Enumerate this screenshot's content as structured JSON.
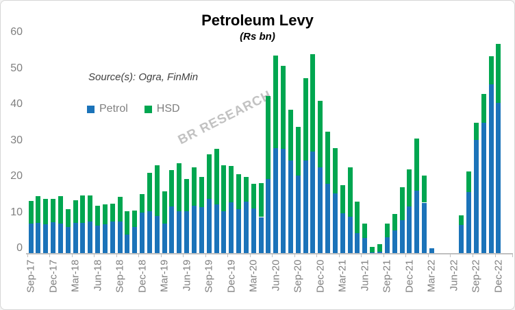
{
  "chart_data": {
    "type": "bar",
    "stacked": true,
    "title": "Petroleum Levy",
    "subtitle": "(Rs bn)",
    "source_note": "Source(s): Ogra, FinMin",
    "watermark": "BR RESEARCH",
    "legend_position": "top-left",
    "grid": false,
    "ylim": [
      0,
      60
    ],
    "yticks": [
      0,
      10,
      20,
      30,
      40,
      50,
      60
    ],
    "x_axis_tick_labels": [
      "Sep-17",
      "Dec-17",
      "Mar-18",
      "Jun-18",
      "Sep-18",
      "Dec-18",
      "Mar-19",
      "Jun-19",
      "Sep-19",
      "Dec-19",
      "Mar-20",
      "Jun-20",
      "Sep-20",
      "Dec-20",
      "Mar-21",
      "Jun-21",
      "Sep-21",
      "Dec-21",
      "Mar-22",
      "Jun-22",
      "Sep-22",
      "Dec-22"
    ],
    "categories": [
      "Sep-17",
      "Oct-17",
      "Nov-17",
      "Dec-17",
      "Jan-18",
      "Feb-18",
      "Mar-18",
      "Apr-18",
      "May-18",
      "Jun-18",
      "Jul-18",
      "Aug-18",
      "Sep-18",
      "Oct-18",
      "Nov-18",
      "Dec-18",
      "Jan-19",
      "Feb-19",
      "Mar-19",
      "Apr-19",
      "May-19",
      "Jun-19",
      "Jul-19",
      "Aug-19",
      "Sep-19",
      "Oct-19",
      "Nov-19",
      "Dec-19",
      "Jan-20",
      "Feb-20",
      "Mar-20",
      "Apr-20",
      "May-20",
      "Jun-20",
      "Jul-20",
      "Aug-20",
      "Sep-20",
      "Oct-20",
      "Nov-20",
      "Dec-20",
      "Jan-21",
      "Feb-21",
      "Mar-21",
      "Apr-21",
      "May-21",
      "Jun-21",
      "Jul-21",
      "Aug-21",
      "Sep-21",
      "Oct-21",
      "Nov-21",
      "Dec-21",
      "Jan-22",
      "Feb-22",
      "Mar-22",
      "Apr-22",
      "May-22",
      "Jun-22",
      "Jul-22",
      "Aug-22",
      "Sep-22",
      "Oct-22",
      "Nov-22",
      "Dec-22"
    ],
    "series": [
      {
        "name": "Petrol",
        "color": "#1b73b9",
        "values": [
          8.2,
          8.4,
          8.0,
          8.6,
          8.1,
          7.3,
          8.3,
          8.3,
          8.7,
          7.7,
          8.0,
          8.7,
          8.8,
          5.2,
          7.3,
          11.3,
          11.6,
          10.2,
          8.1,
          12.9,
          11.7,
          11.6,
          13.2,
          12.7,
          15.1,
          13.6,
          11.7,
          14.1,
          12.2,
          14.2,
          12.4,
          10.0,
          20.5,
          29.2,
          28.9,
          25.7,
          21.5,
          25.7,
          28.1,
          23.9,
          19.2,
          16.6,
          11.1,
          10.1,
          5.5,
          4.1,
          0.2,
          0.3,
          4.4,
          6.2,
          9.2,
          12.9,
          17.3,
          14.0,
          1.3,
          0,
          0,
          0,
          7.9,
          17.0,
          31.4,
          36.1,
          46.9,
          41.7
        ]
      },
      {
        "name": "HSD",
        "color": "#00a650",
        "values": [
          6.2,
          7.4,
          7.0,
          6.4,
          7.7,
          4.9,
          6.3,
          7.7,
          7.3,
          5.5,
          5.5,
          5.0,
          6.9,
          6.4,
          4.5,
          5.0,
          10.6,
          14.2,
          9.0,
          10.2,
          13.3,
          8.9,
          10.7,
          8.4,
          12.3,
          15.4,
          12.6,
          10.0,
          9.7,
          7.0,
          6.9,
          9.4,
          23.1,
          25.6,
          23.1,
          14.1,
          13.5,
          22.8,
          27.1,
          18.4,
          14.5,
          12.6,
          7.7,
          13.8,
          8.8,
          4.0,
          1.5,
          2.2,
          3.8,
          4.6,
          9.0,
          10.3,
          14.6,
          7.6,
          0,
          0,
          0,
          0,
          2.6,
          5.7,
          4.8,
          8.0,
          7.7,
          16.4
        ]
      }
    ],
    "colors": {
      "axis_text": "#7f7f7f",
      "axis_line": "#bfbfbf",
      "title_text": "#000000",
      "source_text": "#3f3f3f",
      "watermark_text": "#c2c2c2"
    }
  }
}
